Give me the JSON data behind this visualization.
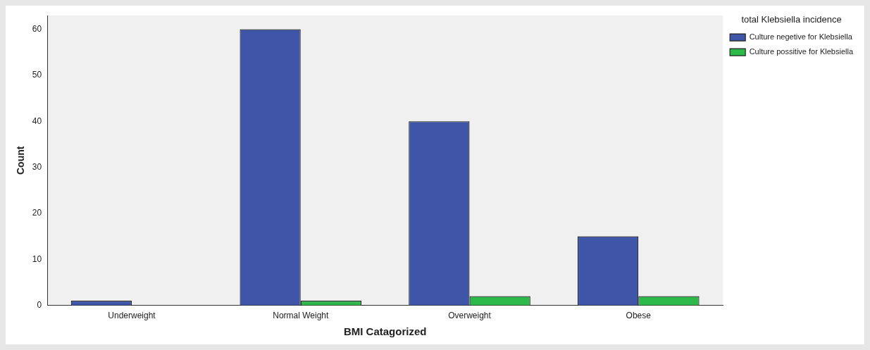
{
  "chart_data": {
    "type": "bar",
    "xlabel": "BMI Catagorized",
    "ylabel": "Count",
    "legend_title": "total Klebsiella incidence",
    "categories": [
      "Underweight",
      "Normal Weight",
      "Overweight",
      "Obese"
    ],
    "series": [
      {
        "name": "Culture negetive for Klebsiella",
        "color": "#3f56a8",
        "values": [
          1,
          60,
          40,
          15
        ]
      },
      {
        "name": "Culture possitive for Klebsiella",
        "color": "#2db84a",
        "values": [
          0,
          1,
          2,
          2
        ]
      }
    ],
    "ylim": [
      0,
      63
    ],
    "yticks": [
      0,
      10,
      20,
      30,
      40,
      50,
      60
    ],
    "grid": false,
    "legend": "top right"
  }
}
